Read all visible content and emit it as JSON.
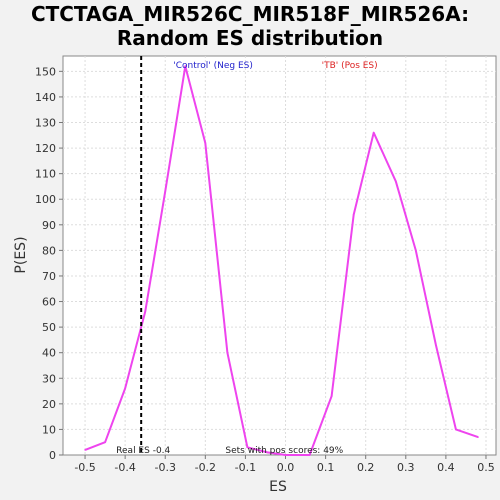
{
  "chart_data": {
    "type": "line",
    "title_lines": [
      "CTCTAGA_MIR526C_MIR518F_MIR526A:",
      "Random ES distribution"
    ],
    "xlabel": "ES",
    "ylabel": "P(ES)",
    "xlim": [
      -0.555,
      0.525
    ],
    "ylim": [
      0,
      156
    ],
    "x_ticks": [
      -0.5,
      -0.4,
      -0.3,
      -0.2,
      -0.1,
      0.0,
      0.1,
      0.2,
      0.3,
      0.4,
      0.5
    ],
    "x_tick_labels": [
      "-0.5",
      "-0.4",
      "-0.3",
      "-0.2",
      "-0.1",
      "0.0",
      "0.1",
      "0.2",
      "0.3",
      "0.4",
      "0.5"
    ],
    "y_ticks": [
      0,
      10,
      20,
      30,
      40,
      50,
      60,
      70,
      80,
      90,
      100,
      110,
      120,
      130,
      140,
      150
    ],
    "grid": true,
    "series_color": "#ee44ee",
    "series": [
      {
        "x": [
          -0.5,
          -0.45,
          -0.4,
          -0.35,
          -0.3,
          -0.25,
          -0.2,
          -0.145,
          -0.095,
          -0.045,
          0.0,
          0.06,
          0.115,
          0.17,
          0.22,
          0.275,
          0.325,
          0.375,
          0.425,
          0.48
        ],
        "values": [
          2,
          5,
          26,
          56,
          103,
          152,
          122,
          40,
          3,
          1,
          0,
          0,
          23,
          94,
          126,
          107,
          80,
          43,
          10,
          7
        ]
      }
    ],
    "real_es": -0.36,
    "real_es_label": "Real ES -0.4",
    "sets_label": "Sets with pos scores: 49%",
    "legend": [
      {
        "label": "'Control' (Neg ES)",
        "color": "#2222cc"
      },
      {
        "label": "'TB' (Pos ES)",
        "color": "#dd2222"
      }
    ]
  }
}
